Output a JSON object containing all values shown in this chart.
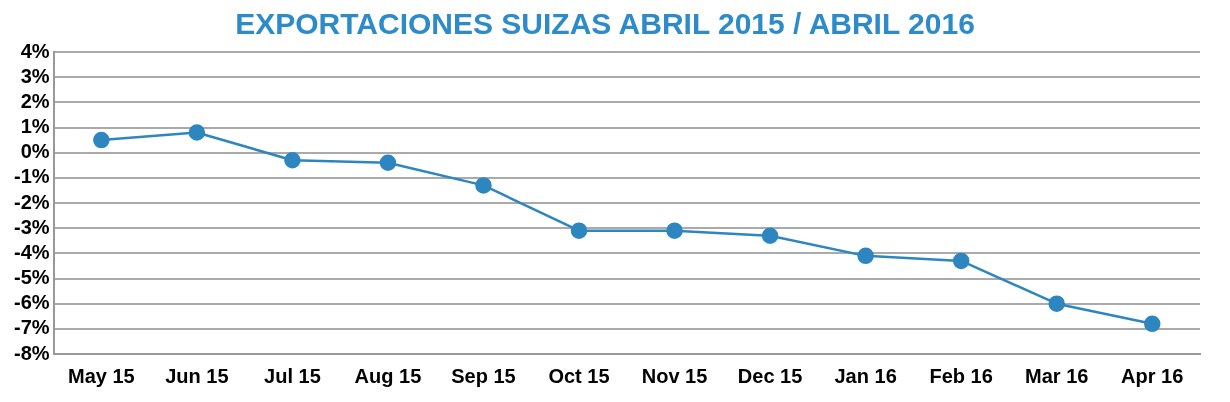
{
  "chart_data": {
    "type": "line",
    "title": "EXPORTACIONES SUIZAS ABRIL 2015 / ABRIL 2016",
    "categories": [
      "May 15",
      "Jun 15",
      "Jul 15",
      "Aug 15",
      "Sep 15",
      "Oct 15",
      "Nov 15",
      "Dec 15",
      "Jan 16",
      "Feb 16",
      "Mar 16",
      "Apr 16"
    ],
    "series": [
      {
        "color": "#2e86c1",
        "values": [
          0.5,
          0.8,
          -0.3,
          -0.4,
          -1.3,
          -3.1,
          -3.1,
          -3.3,
          -4.1,
          -4.3,
          -6.0,
          -6.8
        ]
      }
    ],
    "ylim": [
      -8,
      4
    ],
    "yticks": [
      {
        "value": -8,
        "label": "-8%"
      },
      {
        "value": -7,
        "label": "-7%"
      },
      {
        "value": -6,
        "label": "-6%"
      },
      {
        "value": -5,
        "label": "-5%"
      },
      {
        "value": -4,
        "label": "-4%"
      },
      {
        "value": -3,
        "label": "-3%"
      },
      {
        "value": -2,
        "label": "-2%"
      },
      {
        "value": -1,
        "label": "-1%"
      },
      {
        "value": 0,
        "label": "0%"
      },
      {
        "value": 1,
        "label": "1%"
      },
      {
        "value": 2,
        "label": "2%"
      },
      {
        "value": 3,
        "label": "3%"
      },
      {
        "value": 4,
        "label": "4%"
      }
    ],
    "grid": "y",
    "marker": "circle",
    "line_style": "solid",
    "legend": false
  }
}
